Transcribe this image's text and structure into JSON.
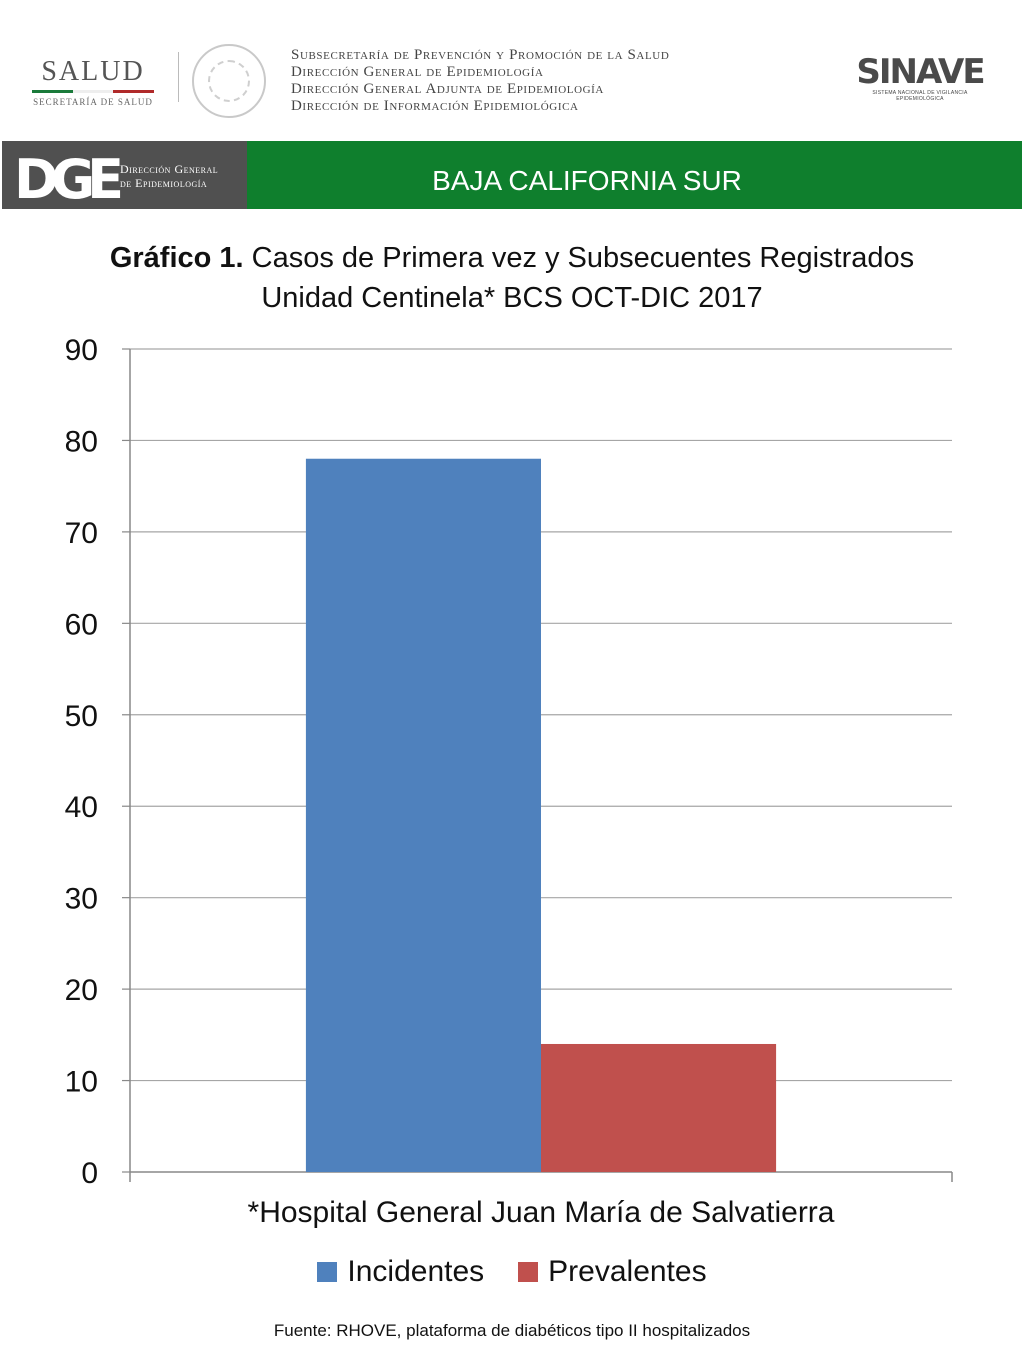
{
  "header": {
    "salud_title": "SALUD",
    "salud_subtitle": "SECRETARÍA DE SALUD",
    "lines": [
      "Subsecretaría de Prevención y Promoción de la Salud",
      "Dirección General de Epidemiología",
      "Dirección General Adjunta de Epidemiología",
      "Dirección de Información Epidemiológica"
    ],
    "sinave_title": "SINAVE",
    "sinave_subtitle": "SISTEMA NACIONAL DE VIGILANCIA EPIDEMIOLÓGICA"
  },
  "banner": {
    "dge_letters": "DGE",
    "dge_label_line1": "Dirección General",
    "dge_label_line2": "de Epidemiología",
    "state": "BAJA CALIFORNIA SUR"
  },
  "colors": {
    "banner_green": "#0f7f2d",
    "banner_grey": "#505050",
    "incidentes": "#4f81bd",
    "prevalentes": "#c0504d"
  },
  "chart_data": {
    "type": "bar",
    "title_bold": "Gráfico 1.",
    "title_rest": "Casos de Primera vez y Subsecuentes Registrados",
    "title_line2": "Unidad Centinela* BCS OCT-DIC 2017",
    "categories": [
      "*Hospital General Juan María de Salvatierra"
    ],
    "series": [
      {
        "name": "Incidentes",
        "values": [
          78
        ],
        "color": "#4f81bd"
      },
      {
        "name": "Prevalentes",
        "values": [
          14
        ],
        "color": "#c0504d"
      }
    ],
    "ylim": [
      0,
      90
    ],
    "yticks": [
      0,
      10,
      20,
      30,
      40,
      50,
      60,
      70,
      80,
      90
    ],
    "grid": true,
    "legend": "bottom"
  },
  "footer": {
    "source": "Fuente: RHOVE, plataforma de diabéticos tipo II hospitalizados"
  }
}
